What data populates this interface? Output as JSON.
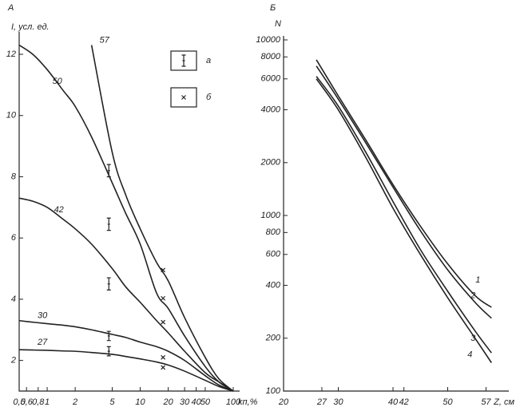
{
  "chart_data": [
    {
      "type": "line",
      "panel": "А",
      "ylabel": "I, усл. ед.",
      "xlabel": "kп,%",
      "xscale": "log",
      "color": "#222",
      "xlim": [
        0.5,
        100
      ],
      "ylim": [
        1,
        12.6
      ],
      "xticks": [
        {
          "value": 0.5,
          "label": "0,5"
        },
        {
          "value": 0.6,
          "label": "0,6"
        },
        {
          "value": 0.8,
          "label": "0,8"
        },
        1,
        2,
        5,
        10,
        20,
        30,
        40,
        50,
        100
      ],
      "yticks": [
        2,
        4,
        6,
        8,
        10,
        12
      ],
      "x": [
        0.5,
        0.7,
        1,
        1.5,
        2,
        3,
        5,
        7,
        10,
        15,
        20,
        30,
        50,
        70,
        100
      ],
      "series": [
        {
          "name": "57",
          "values": [
            null,
            null,
            null,
            null,
            null,
            12.3,
            8.8,
            7.4,
            6.3,
            5.2,
            4.6,
            3.4,
            2.1,
            1.4,
            1.0
          ]
        },
        {
          "name": "50",
          "values": [
            12.3,
            12.0,
            11.5,
            10.8,
            10.3,
            9.3,
            7.8,
            6.8,
            5.8,
            4.2,
            3.7,
            2.8,
            1.8,
            1.3,
            1.0
          ]
        },
        {
          "name": "42",
          "values": [
            7.3,
            7.2,
            7.0,
            6.6,
            6.3,
            5.8,
            5.0,
            4.4,
            3.9,
            3.3,
            2.9,
            2.3,
            1.6,
            1.3,
            1.0
          ]
        },
        {
          "name": "30",
          "values": [
            3.3,
            3.25,
            3.2,
            3.15,
            3.1,
            3.0,
            2.85,
            2.75,
            2.6,
            2.45,
            2.3,
            2.0,
            1.5,
            1.2,
            1.0
          ]
        },
        {
          "name": "27",
          "values": [
            2.35,
            2.34,
            2.33,
            2.31,
            2.3,
            2.26,
            2.2,
            2.13,
            2.05,
            1.95,
            1.85,
            1.65,
            1.35,
            1.15,
            1.0
          ]
        }
      ],
      "markers": [
        {
          "name": "а",
          "symbol": "errorbar",
          "x": [
            4.6,
            4.6,
            4.6,
            4.6,
            4.6
          ],
          "values": [
            8.2,
            6.45,
            4.5,
            2.8,
            2.3
          ],
          "errors": [
            0.2,
            0.2,
            0.2,
            0.15,
            0.15
          ]
        },
        {
          "name": "б",
          "symbol": "cross",
          "x": [
            17.6,
            17.6,
            17.6,
            17.6,
            17.6
          ],
          "values": [
            4.95,
            4.03,
            3.25,
            2.1,
            1.77
          ]
        }
      ]
    },
    {
      "type": "line",
      "panel": "Б",
      "ylabel": "N",
      "xlabel": "Z, см",
      "yscale": "log",
      "color": "#222",
      "xlim": [
        20,
        60
      ],
      "ylim": [
        100,
        10000
      ],
      "xticks": [
        20,
        27,
        30,
        40,
        42,
        50,
        57
      ],
      "yticks": [
        100,
        200,
        400,
        600,
        800,
        1000,
        2000,
        4000,
        6000,
        8000,
        10000
      ],
      "x": [
        26,
        30,
        35,
        40,
        45,
        50,
        55,
        58
      ],
      "series": [
        {
          "name": "1",
          "values": [
            7700,
            4800,
            2700,
            1500,
            870,
            530,
            350,
            300
          ]
        },
        {
          "name": "2",
          "values": [
            7100,
            4600,
            2600,
            1450,
            820,
            490,
            320,
            260
          ]
        },
        {
          "name": "3",
          "values": [
            6200,
            4200,
            2300,
            1200,
            640,
            370,
            220,
            165
          ]
        },
        {
          "name": "4",
          "values": [
            6000,
            4000,
            2150,
            1100,
            600,
            340,
            200,
            145
          ]
        }
      ]
    }
  ]
}
